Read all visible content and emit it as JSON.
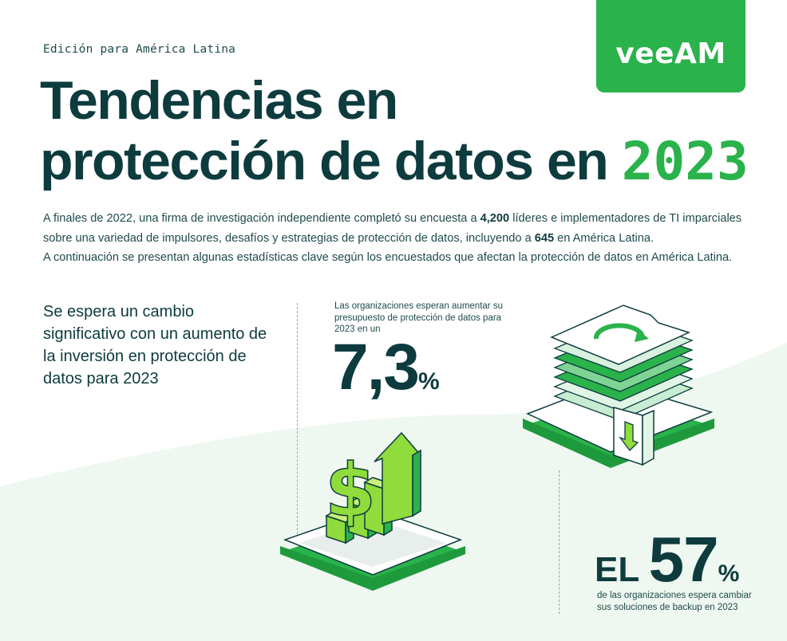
{
  "header": {
    "edition": "Edición para América Latina",
    "logo_text": "veeAM",
    "title_line1": "Tendencias en",
    "title_line2": "protección de datos en ",
    "title_year": "2023"
  },
  "intro": {
    "p1_a": "A finales de 2022, una firma de investigación independiente completó su encuesta a ",
    "p1_num": "4,200",
    "p1_b": "  líderes e implementadores de TI imparciales sobre una variedad de impulsores, desafíos y estrategias de protección de datos, incluyendo a ",
    "p1_num2": "645",
    "p1_c": " en América Latina.",
    "p2": "A continuación se presentan algunas estadísticas clave según los encuestados que afectan la protección de datos en América Latina."
  },
  "section": {
    "headline": "Se espera un cambio significativo con un aumento de la inversión en protección de datos para 2023"
  },
  "stat1": {
    "desc": "Las organizaciones esperan aumentar su presupuesto de protección de datos para 2023 en un",
    "value": "7,3",
    "unit": "%"
  },
  "stat2": {
    "prefix": "EL ",
    "value": "57",
    "unit": "%",
    "desc": "de las organizaciones espera cambiar sus soluciones de backup en 2023"
  },
  "colors": {
    "brand_green": "#2ab24b",
    "dark_teal": "#0d3b3e",
    "bg_tint": "#eef7f0"
  },
  "icons": {
    "dollar_chart": "dollar-growth-chart-icon",
    "data_stack": "data-layers-backup-icon"
  }
}
